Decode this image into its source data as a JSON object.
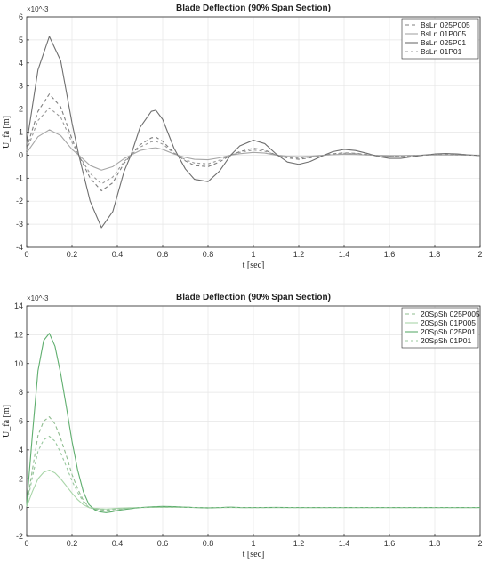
{
  "chart_data": [
    {
      "type": "line",
      "title": "Blade Deflection (90% Span Section)",
      "xlabel": "t [sec]",
      "ylabel": "U_fa [m]",
      "y_multiplier": "×10^-3",
      "xlim": [
        0,
        2
      ],
      "ylim": [
        -4,
        6
      ],
      "xticks": [
        0,
        0.2,
        0.4,
        0.6,
        0.8,
        1,
        1.2,
        1.4,
        1.6,
        1.8,
        2
      ],
      "yticks": [
        -4,
        -3,
        -2,
        -1,
        0,
        1,
        2,
        3,
        4,
        5,
        6
      ],
      "grid": true,
      "legend_position": "top-right",
      "x": [
        0,
        0.05,
        0.1,
        0.15,
        0.2,
        0.23,
        0.28,
        0.33,
        0.38,
        0.43,
        0.46,
        0.5,
        0.55,
        0.57,
        0.6,
        0.65,
        0.7,
        0.74,
        0.8,
        0.85,
        0.9,
        0.94,
        1.0,
        1.05,
        1.1,
        1.15,
        1.2,
        1.25,
        1.3,
        1.35,
        1.4,
        1.45,
        1.5,
        1.55,
        1.6,
        1.65,
        1.7,
        1.75,
        1.8,
        1.85,
        1.9,
        1.95,
        2.0
      ],
      "series": [
        {
          "name": "BsLn 025P005",
          "color": "#7f7f7f",
          "dash": "4,3",
          "values": [
            0.3,
            1.9,
            2.65,
            2.1,
            0.7,
            0.0,
            -1.0,
            -1.55,
            -1.2,
            -0.35,
            0.0,
            0.45,
            0.75,
            0.78,
            0.6,
            0.1,
            -0.25,
            -0.45,
            -0.5,
            -0.3,
            0.0,
            0.15,
            0.3,
            0.22,
            0.0,
            -0.12,
            -0.18,
            -0.12,
            -0.02,
            0.06,
            0.1,
            0.08,
            0.03,
            -0.03,
            -0.06,
            -0.06,
            -0.03,
            0.0,
            0.02,
            0.03,
            0.02,
            0.0,
            -0.01
          ]
        },
        {
          "name": "BsLn 01P005",
          "color": "#a6a6a6",
          "dash": "",
          "values": [
            0.1,
            0.8,
            1.1,
            0.85,
            0.25,
            0.0,
            -0.45,
            -0.65,
            -0.5,
            -0.15,
            0.0,
            0.2,
            0.3,
            0.32,
            0.25,
            0.05,
            -0.1,
            -0.18,
            -0.2,
            -0.12,
            0.0,
            0.06,
            0.12,
            0.09,
            0.0,
            -0.05,
            -0.07,
            -0.05,
            -0.01,
            0.02,
            0.04,
            0.03,
            0.01,
            -0.01,
            -0.02,
            -0.02,
            -0.01,
            0.0,
            0.01,
            0.01,
            0.01,
            0.0,
            0.0
          ]
        },
        {
          "name": "BsLn 025P01",
          "color": "#6e6e6e",
          "dash": "",
          "values": [
            0.5,
            3.7,
            5.15,
            4.1,
            1.4,
            0.0,
            -2.0,
            -3.15,
            -2.45,
            -0.7,
            0.0,
            1.2,
            1.9,
            1.95,
            1.55,
            0.3,
            -0.6,
            -1.05,
            -1.15,
            -0.7,
            0.0,
            0.4,
            0.65,
            0.5,
            0.05,
            -0.3,
            -0.4,
            -0.28,
            -0.05,
            0.15,
            0.25,
            0.2,
            0.08,
            -0.06,
            -0.14,
            -0.14,
            -0.07,
            0.0,
            0.05,
            0.07,
            0.05,
            0.01,
            -0.02
          ]
        },
        {
          "name": "BsLn 01P01",
          "color": "#9a9a9a",
          "dash": "3,3",
          "values": [
            0.2,
            1.5,
            2.05,
            1.65,
            0.55,
            0.0,
            -0.8,
            -1.25,
            -0.95,
            -0.28,
            0.0,
            0.35,
            0.58,
            0.6,
            0.48,
            0.08,
            -0.2,
            -0.34,
            -0.38,
            -0.22,
            0.0,
            0.12,
            0.22,
            0.17,
            0.01,
            -0.09,
            -0.13,
            -0.09,
            -0.02,
            0.05,
            0.08,
            0.06,
            0.02,
            -0.02,
            -0.05,
            -0.05,
            -0.02,
            0.0,
            0.02,
            0.02,
            0.01,
            0.0,
            -0.01
          ]
        }
      ]
    },
    {
      "type": "line",
      "title": "Blade Deflection (90% Span Section)",
      "xlabel": "t [sec]",
      "ylabel": "U_fa [m]",
      "y_multiplier": "×10^-3",
      "xlim": [
        0,
        2
      ],
      "ylim": [
        -2,
        14
      ],
      "xticks": [
        0,
        0.2,
        0.4,
        0.6,
        0.8,
        1,
        1.2,
        1.4,
        1.6,
        1.8,
        2
      ],
      "yticks": [
        -2,
        0,
        2,
        4,
        6,
        8,
        10,
        12,
        14
      ],
      "grid": true,
      "legend_position": "top-right",
      "x": [
        0,
        0.025,
        0.05,
        0.075,
        0.1,
        0.125,
        0.15,
        0.175,
        0.2,
        0.225,
        0.25,
        0.275,
        0.3,
        0.325,
        0.35,
        0.375,
        0.4,
        0.45,
        0.5,
        0.55,
        0.6,
        0.65,
        0.7,
        0.75,
        0.8,
        0.85,
        0.9,
        0.95,
        1.0,
        1.1,
        1.2,
        1.3,
        1.4,
        1.5,
        1.6,
        1.7,
        1.8,
        1.9,
        2.0
      ],
      "series": [
        {
          "name": "20SpSh 025P005",
          "color": "#8fbc8f",
          "dash": "4,3",
          "values": [
            0.1,
            2.6,
            5.0,
            6.0,
            6.3,
            5.8,
            4.8,
            3.6,
            2.3,
            1.3,
            0.5,
            0.0,
            -0.1,
            -0.15,
            -0.2,
            -0.17,
            -0.12,
            -0.05,
            0.0,
            0.02,
            0.03,
            0.05,
            0.03,
            0.0,
            -0.02,
            0.0,
            0.02,
            0.0,
            0.0,
            0.0,
            0.0,
            0.0,
            0.0,
            0.0,
            0.0,
            0.0,
            0.0,
            0.0,
            0.0
          ]
        },
        {
          "name": "20SpSh 01P005",
          "color": "#a8d5a8",
          "dash": "",
          "values": [
            0.05,
            1.1,
            2.0,
            2.45,
            2.6,
            2.4,
            2.0,
            1.5,
            1.0,
            0.55,
            0.2,
            0.0,
            -0.05,
            -0.08,
            -0.1,
            -0.08,
            -0.05,
            -0.02,
            0.0,
            0.01,
            0.02,
            0.02,
            0.01,
            0.0,
            -0.01,
            0.0,
            0.01,
            0.0,
            0.0,
            0.0,
            0.0,
            0.0,
            0.0,
            0.0,
            0.0,
            0.0,
            0.0,
            0.0,
            0.0
          ]
        },
        {
          "name": "20SpSh 025P01",
          "color": "#5fae6e",
          "dash": "",
          "values": [
            0.2,
            5.0,
            9.5,
            11.6,
            12.1,
            11.2,
            9.3,
            7.0,
            4.6,
            2.6,
            1.1,
            0.2,
            -0.15,
            -0.3,
            -0.35,
            -0.3,
            -0.2,
            -0.1,
            0.0,
            0.05,
            0.08,
            0.07,
            0.03,
            0.0,
            -0.03,
            0.0,
            0.03,
            0.0,
            0.0,
            0.01,
            0.0,
            0.0,
            0.0,
            0.0,
            0.0,
            0.0,
            0.0,
            0.0,
            0.0
          ]
        },
        {
          "name": "20SpSh 01P01",
          "color": "#98c89e",
          "dash": "3,3",
          "values": [
            0.1,
            2.1,
            3.9,
            4.7,
            4.95,
            4.6,
            3.8,
            2.85,
            1.85,
            1.05,
            0.4,
            0.0,
            -0.08,
            -0.12,
            -0.15,
            -0.13,
            -0.09,
            -0.04,
            0.0,
            0.02,
            0.03,
            0.03,
            0.02,
            0.0,
            -0.01,
            0.0,
            0.01,
            0.0,
            0.0,
            0.0,
            0.0,
            0.0,
            0.0,
            0.0,
            0.0,
            0.0,
            0.0,
            0.0,
            0.0
          ]
        }
      ]
    }
  ]
}
